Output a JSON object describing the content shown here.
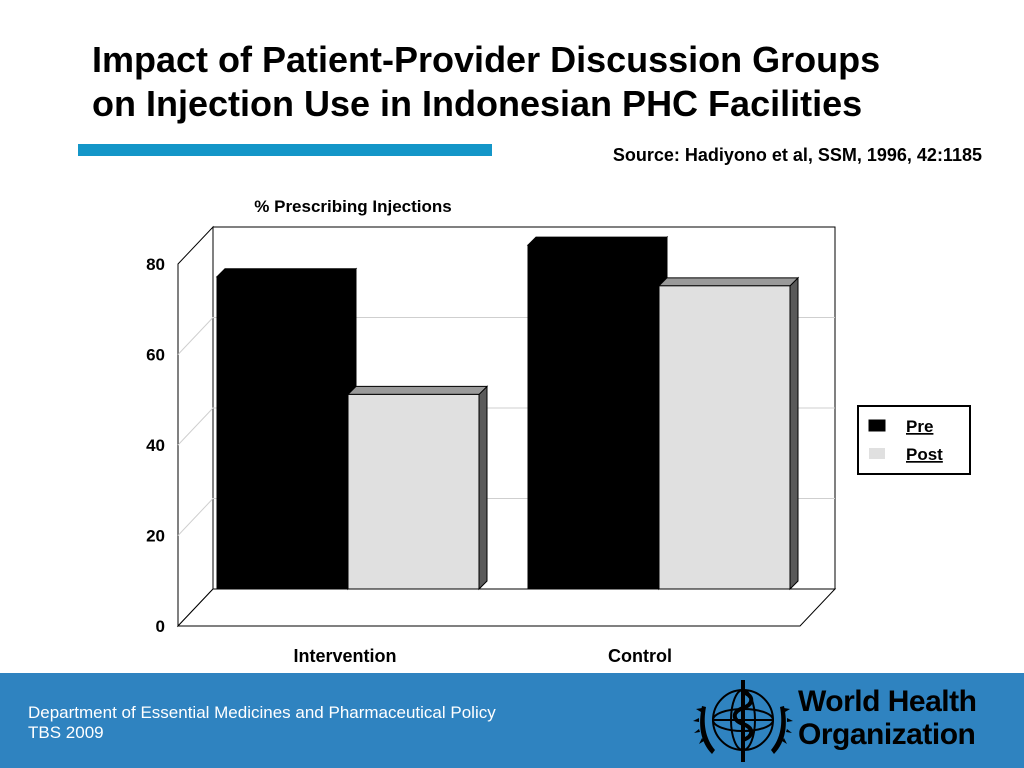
{
  "slide": {
    "title_line1": "Impact of Patient-Provider Discussion Groups",
    "title_line2": "on Injection Use in Indonesian PHC Facilities",
    "source": "Source: Hadiyono et al, SSM, 1996, 42:1185"
  },
  "footer": {
    "line1": "Department of Essential Medicines and Pharmaceutical Policy",
    "line2": "TBS 2009",
    "org_line1": "World Health",
    "org_line2": "Organization"
  },
  "colors": {
    "accent": "#1496c8",
    "footer_bg": "#2f83c0",
    "pre": "#000000",
    "post": "#e0e0e0"
  },
  "chart_data": {
    "type": "bar",
    "ylabel": "% Prescribing Injections",
    "xlabel": "",
    "categories": [
      "Intervention",
      "Control"
    ],
    "series": [
      {
        "name": "Pre",
        "values": [
          69,
          76
        ]
      },
      {
        "name": "Post",
        "values": [
          43,
          67
        ]
      }
    ],
    "ylim": [
      0,
      80
    ],
    "yticks": [
      0,
      20,
      40,
      60,
      80
    ],
    "grid": true,
    "legend_position": "right",
    "style": "3d"
  }
}
